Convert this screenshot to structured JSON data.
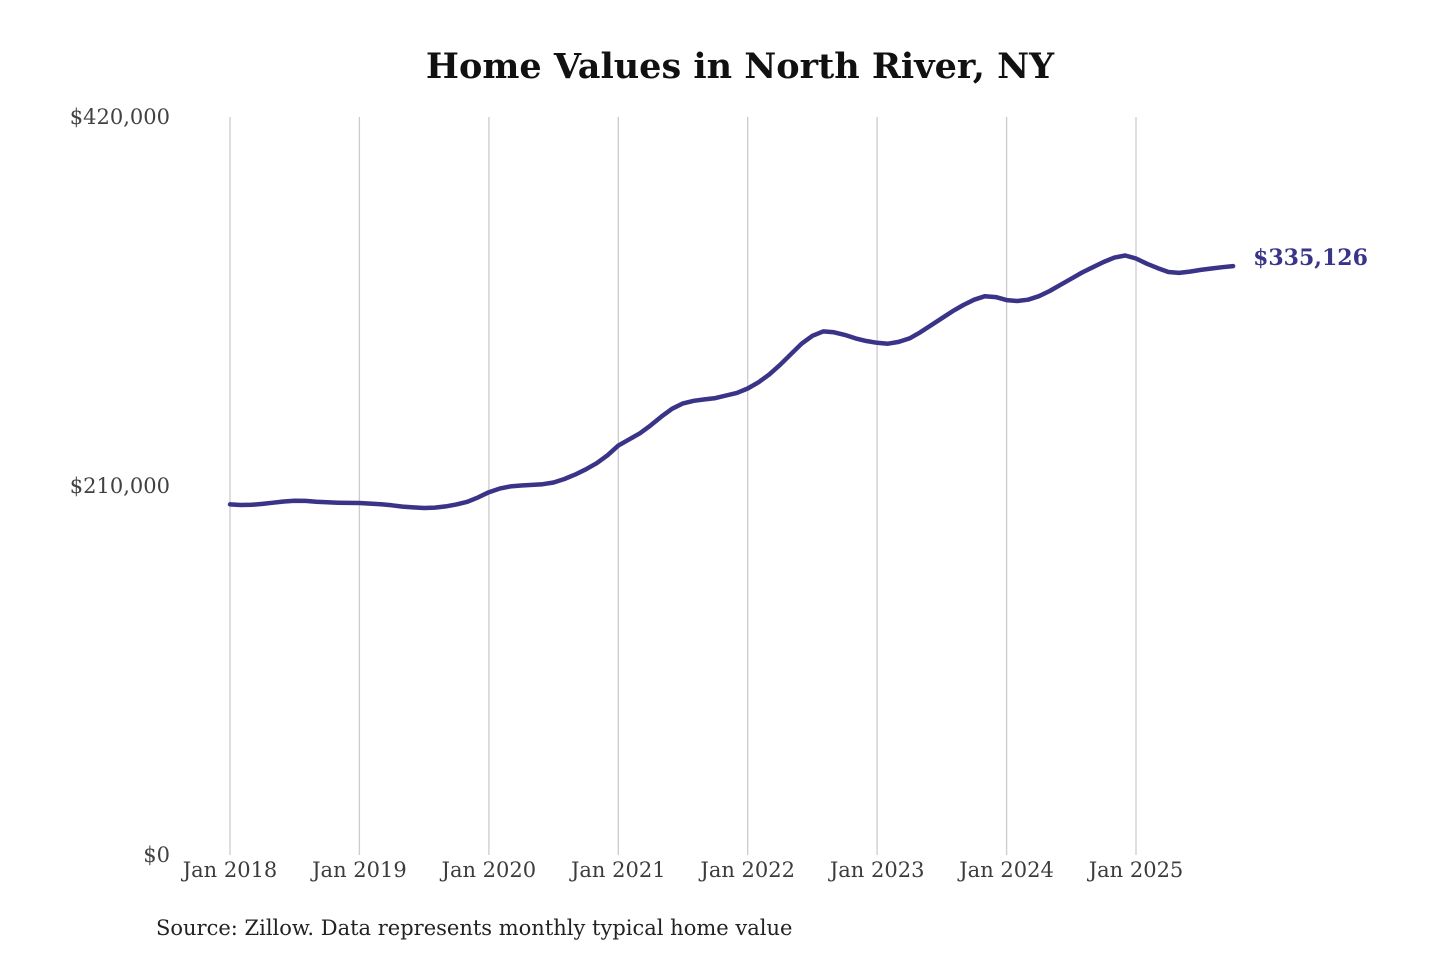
{
  "chart": {
    "title": "Home Values in North River, NY",
    "end_label": "$335,126",
    "source": "Source: Zillow. Data represents monthly typical home value",
    "line_color": "#3a3489",
    "gridline_color": "#cccccc"
  },
  "chart_data": {
    "type": "line",
    "title": "Home Values in North River, NY",
    "series_name": "Monthly typical home value",
    "frequency": "monthly",
    "grid": "vertical-only",
    "legend": "none",
    "ylim": [
      0,
      420000
    ],
    "y_ticks": [
      {
        "label": "$0",
        "value": 0
      },
      {
        "label": "$210,000",
        "value": 210000
      },
      {
        "label": "$420,000",
        "value": 420000
      }
    ],
    "x_tick_labels": [
      "Jan 2018",
      "Jan 2019",
      "Jan 2020",
      "Jan 2021",
      "Jan 2022",
      "Jan 2023",
      "Jan 2024",
      "Jan 2025"
    ],
    "x_tick_indices": [
      0,
      12,
      24,
      36,
      48,
      60,
      72,
      84
    ],
    "annotation": {
      "text": "$335,126",
      "value": 335126,
      "position": "line-end"
    },
    "x": [
      "Jan 2018",
      "Feb 2018",
      "Mar 2018",
      "Apr 2018",
      "May 2018",
      "Jun 2018",
      "Jul 2018",
      "Aug 2018",
      "Sep 2018",
      "Oct 2018",
      "Nov 2018",
      "Dec 2018",
      "Jan 2019",
      "Feb 2019",
      "Mar 2019",
      "Apr 2019",
      "May 2019",
      "Jun 2019",
      "Jul 2019",
      "Aug 2019",
      "Sep 2019",
      "Oct 2019",
      "Nov 2019",
      "Dec 2019",
      "Jan 2020",
      "Feb 2020",
      "Mar 2020",
      "Apr 2020",
      "May 2020",
      "Jun 2020",
      "Jul 2020",
      "Aug 2020",
      "Sep 2020",
      "Oct 2020",
      "Nov 2020",
      "Dec 2020",
      "Jan 2021",
      "Feb 2021",
      "Mar 2021",
      "Apr 2021",
      "May 2021",
      "Jun 2021",
      "Jul 2021",
      "Aug 2021",
      "Sep 2021",
      "Oct 2021",
      "Nov 2021",
      "Dec 2021",
      "Jan 2022",
      "Feb 2022",
      "Mar 2022",
      "Apr 2022",
      "May 2022",
      "Jun 2022",
      "Jul 2022",
      "Aug 2022",
      "Sep 2022",
      "Oct 2022",
      "Nov 2022",
      "Dec 2022",
      "Jan 2023",
      "Feb 2023",
      "Mar 2023",
      "Apr 2023",
      "May 2023",
      "Jun 2023",
      "Jul 2023",
      "Aug 2023",
      "Sep 2023",
      "Oct 2023",
      "Nov 2023",
      "Dec 2023",
      "Jan 2024",
      "Feb 2024",
      "Mar 2024",
      "Apr 2024",
      "May 2024",
      "Jun 2024",
      "Jul 2024",
      "Aug 2024",
      "Sep 2024",
      "Oct 2024",
      "Nov 2024",
      "Dec 2024",
      "Jan 2025",
      "Feb 2025",
      "Mar 2025",
      "Apr 2025",
      "May 2025",
      "Jun 2025",
      "Jul 2025",
      "Aug 2025",
      "Sep 2025",
      "Oct 2025"
    ],
    "values": [
      199500,
      199200,
      199300,
      199800,
      200500,
      201200,
      201600,
      201500,
      201000,
      200700,
      200500,
      200400,
      200300,
      200000,
      199600,
      199000,
      198300,
      197800,
      197500,
      197700,
      198400,
      199500,
      201000,
      203500,
      206500,
      208500,
      209800,
      210300,
      210600,
      211000,
      212000,
      214000,
      216500,
      219500,
      223000,
      227500,
      233000,
      236500,
      240000,
      244500,
      249500,
      254000,
      257000,
      258500,
      259300,
      260000,
      261500,
      263000,
      265500,
      269000,
      273500,
      279000,
      285000,
      291000,
      295500,
      298000,
      297500,
      296000,
      294000,
      292500,
      291500,
      291000,
      292000,
      294000,
      297500,
      301500,
      305500,
      309500,
      313000,
      316000,
      318000,
      317500,
      315800,
      315300,
      316000,
      318000,
      321000,
      324500,
      328000,
      331500,
      334500,
      337500,
      340000,
      341200,
      339500,
      336500,
      334000,
      331800,
      331300,
      332000,
      333000,
      333800,
      334500,
      335126
    ]
  }
}
